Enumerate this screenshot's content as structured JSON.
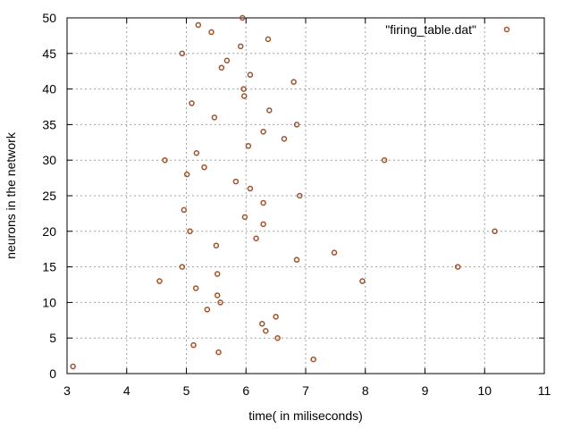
{
  "chart_data": {
    "type": "scatter",
    "title": "",
    "xlabel": "time( in miliseconds)",
    "ylabel": "neurons in the network",
    "xlim": [
      3,
      11
    ],
    "ylim": [
      0,
      50
    ],
    "xticks": [
      3,
      4,
      5,
      6,
      7,
      8,
      9,
      10,
      11
    ],
    "yticks": [
      0,
      5,
      10,
      15,
      20,
      25,
      30,
      35,
      40,
      45,
      50
    ],
    "grid": true,
    "legend_position": "top-right",
    "marker_color": "#a0522d",
    "series": [
      {
        "name": "\"firing_table.dat\"",
        "points": [
          [
            3.1,
            1
          ],
          [
            7.13,
            2
          ],
          [
            5.54,
            3
          ],
          [
            5.12,
            4
          ],
          [
            6.53,
            5
          ],
          [
            6.33,
            6
          ],
          [
            6.27,
            7
          ],
          [
            6.5,
            8
          ],
          [
            5.35,
            9
          ],
          [
            5.57,
            10
          ],
          [
            5.52,
            11
          ],
          [
            5.16,
            12
          ],
          [
            4.55,
            13
          ],
          [
            7.95,
            13
          ],
          [
            5.52,
            14
          ],
          [
            4.93,
            15
          ],
          [
            9.55,
            15
          ],
          [
            6.85,
            16
          ],
          [
            7.48,
            17
          ],
          [
            5.5,
            18
          ],
          [
            6.17,
            19
          ],
          [
            5.06,
            20
          ],
          [
            10.17,
            20
          ],
          [
            6.29,
            21
          ],
          [
            5.98,
            22
          ],
          [
            4.96,
            23
          ],
          [
            6.29,
            24
          ],
          [
            6.9,
            25
          ],
          [
            6.07,
            26
          ],
          [
            5.83,
            27
          ],
          [
            5.01,
            28
          ],
          [
            5.3,
            29
          ],
          [
            4.64,
            30
          ],
          [
            8.32,
            30
          ],
          [
            5.17,
            31
          ],
          [
            6.04,
            32
          ],
          [
            6.64,
            33
          ],
          [
            6.29,
            34
          ],
          [
            6.85,
            35
          ],
          [
            5.47,
            36
          ],
          [
            6.39,
            37
          ],
          [
            5.09,
            38
          ],
          [
            5.97,
            39
          ],
          [
            5.96,
            40
          ],
          [
            6.8,
            41
          ],
          [
            6.07,
            42
          ],
          [
            5.59,
            43
          ],
          [
            5.68,
            44
          ],
          [
            4.93,
            45
          ],
          [
            5.91,
            46
          ],
          [
            6.37,
            47
          ],
          [
            5.42,
            48
          ],
          [
            5.2,
            49
          ],
          [
            5.94,
            50
          ]
        ]
      }
    ]
  }
}
